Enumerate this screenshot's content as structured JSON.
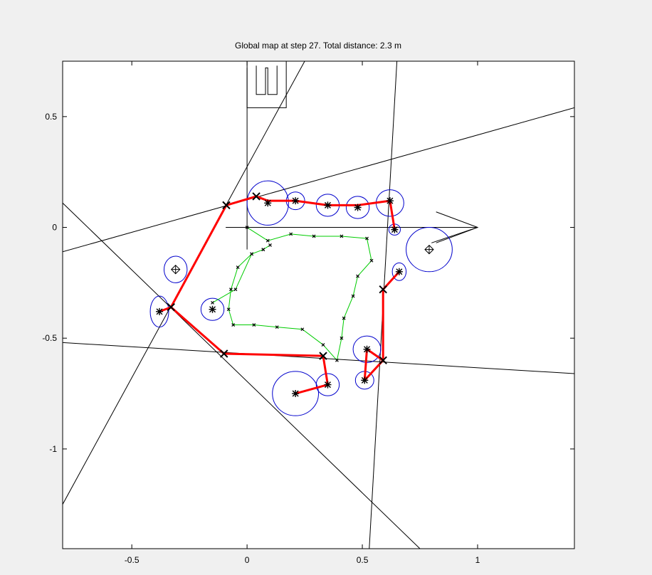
{
  "chart_data": {
    "type": "scatter",
    "title": "Global map at step 27. Total distance: 2.3 m",
    "xlabel": "",
    "ylabel": "",
    "xlim": [
      -0.8,
      1.42
    ],
    "ylim": [
      -1.45,
      0.75
    ],
    "grid": false,
    "legend": "none",
    "x_ticks": [
      -0.5,
      0,
      0.5,
      1
    ],
    "x_tick_labels": [
      "-0.5",
      "0",
      "0.5",
      "1"
    ],
    "y_ticks": [
      0.5,
      0,
      -0.5,
      -1
    ],
    "y_tick_labels": [
      "0.5",
      "0",
      "-0.5",
      "-1"
    ],
    "colors": {
      "figure_bg": "#f0f0f0",
      "axes_bg": "#ffffff",
      "map_path": "#ff0000",
      "robot_trajectory": "#00cc00",
      "uncertainty_ellipse": "#0000cc",
      "lines": "#000000"
    },
    "series": [
      {
        "kind": "map_path",
        "points": [
          [
            0.64,
            -0.01
          ],
          [
            0.62,
            0.12
          ],
          [
            0.48,
            0.1
          ],
          [
            0.35,
            0.1
          ],
          [
            0.21,
            0.12
          ],
          [
            0.09,
            0.12
          ],
          [
            0.04,
            0.14
          ],
          [
            -0.09,
            0.1
          ],
          [
            -0.33,
            -0.36
          ],
          [
            -0.1,
            -0.57
          ],
          [
            0.33,
            -0.58
          ],
          [
            0.35,
            -0.71
          ],
          [
            0.21,
            -0.75
          ]
        ]
      },
      {
        "kind": "map_path",
        "points": [
          [
            0.66,
            -0.2
          ],
          [
            0.59,
            -0.28
          ],
          [
            0.59,
            -0.6
          ],
          [
            0.52,
            -0.55
          ],
          [
            0.59,
            -0.6
          ],
          [
            0.51,
            -0.69
          ],
          [
            0.52,
            -0.55
          ]
        ]
      },
      {
        "kind": "map_path",
        "points": [
          [
            -0.33,
            -0.36
          ],
          [
            -0.38,
            -0.38
          ]
        ]
      },
      {
        "kind": "robot_trajectory",
        "points": [
          [
            0.0,
            0.0
          ],
          [
            0.09,
            -0.06
          ],
          [
            0.19,
            -0.03
          ],
          [
            0.29,
            -0.04
          ],
          [
            0.41,
            -0.04
          ],
          [
            0.52,
            -0.05
          ],
          [
            0.54,
            -0.15
          ],
          [
            0.48,
            -0.22
          ],
          [
            0.46,
            -0.31
          ],
          [
            0.42,
            -0.41
          ],
          [
            0.41,
            -0.5
          ],
          [
            0.39,
            -0.6
          ],
          [
            0.33,
            -0.53
          ],
          [
            0.24,
            -0.46
          ],
          [
            0.13,
            -0.45
          ],
          [
            0.03,
            -0.44
          ],
          [
            -0.06,
            -0.44
          ],
          [
            -0.08,
            -0.37
          ],
          [
            -0.07,
            -0.28
          ],
          [
            -0.04,
            -0.18
          ],
          [
            0.02,
            -0.12
          ],
          [
            0.07,
            -0.1
          ],
          [
            0.1,
            -0.08
          ],
          [
            0.07,
            -0.1
          ],
          [
            0.02,
            -0.12
          ],
          [
            -0.05,
            -0.28
          ],
          [
            -0.15,
            -0.34
          ]
        ]
      }
    ],
    "landmarks_star": [
      [
        0.09,
        0.11
      ],
      [
        0.21,
        0.12
      ],
      [
        0.35,
        0.1
      ],
      [
        0.48,
        0.09
      ],
      [
        0.62,
        0.12
      ],
      [
        0.64,
        -0.01
      ],
      [
        0.66,
        -0.2
      ],
      [
        -0.38,
        -0.38
      ],
      [
        0.52,
        -0.55
      ],
      [
        0.51,
        -0.69
      ],
      [
        0.35,
        -0.71
      ],
      [
        0.21,
        -0.75
      ],
      [
        -0.15,
        -0.37
      ]
    ],
    "landmarks_diamond": [
      [
        -0.31,
        -0.19
      ],
      [
        0.79,
        -0.1
      ]
    ],
    "cross_markers": [
      [
        -0.09,
        0.1
      ],
      [
        0.04,
        0.14
      ],
      [
        -0.33,
        -0.36
      ],
      [
        -0.1,
        -0.57
      ],
      [
        0.33,
        -0.58
      ],
      [
        0.59,
        -0.28
      ],
      [
        0.59,
        -0.6
      ]
    ],
    "ellipses": [
      {
        "cx": 0.09,
        "cy": 0.11,
        "rx": 0.09,
        "ry": 0.1
      },
      {
        "cx": 0.21,
        "cy": 0.12,
        "rx": 0.04,
        "ry": 0.04
      },
      {
        "cx": 0.35,
        "cy": 0.1,
        "rx": 0.05,
        "ry": 0.05
      },
      {
        "cx": 0.48,
        "cy": 0.09,
        "rx": 0.05,
        "ry": 0.05
      },
      {
        "cx": 0.62,
        "cy": 0.11,
        "rx": 0.06,
        "ry": 0.06
      },
      {
        "cx": 0.64,
        "cy": -0.01,
        "rx": 0.025,
        "ry": 0.025
      },
      {
        "cx": 0.66,
        "cy": -0.2,
        "rx": 0.03,
        "ry": 0.04
      },
      {
        "cx": 0.79,
        "cy": -0.1,
        "rx": 0.1,
        "ry": 0.1
      },
      {
        "cx": -0.31,
        "cy": -0.19,
        "rx": 0.05,
        "ry": 0.06
      },
      {
        "cx": -0.38,
        "cy": -0.38,
        "rx": 0.04,
        "ry": 0.07
      },
      {
        "cx": -0.15,
        "cy": -0.37,
        "rx": 0.05,
        "ry": 0.05
      },
      {
        "cx": 0.52,
        "cy": -0.55,
        "rx": 0.06,
        "ry": 0.06
      },
      {
        "cx": 0.51,
        "cy": -0.69,
        "rx": 0.04,
        "ry": 0.04
      },
      {
        "cx": 0.35,
        "cy": -0.71,
        "rx": 0.05,
        "ry": 0.05
      },
      {
        "cx": 0.21,
        "cy": -0.75,
        "rx": 0.1,
        "ry": 0.1
      }
    ],
    "lines": [
      [
        -0.8,
        -0.11,
        1.42,
        0.54
      ],
      [
        -0.8,
        -0.52,
        1.42,
        -0.66
      ],
      [
        -0.8,
        0.11,
        0.75,
        -1.45
      ],
      [
        -0.8,
        -1.25,
        0.25,
        0.75
      ],
      [
        0.53,
        -1.45,
        0.65,
        0.75
      ]
    ],
    "robot_frame": {
      "x_axis": [
        0,
        0,
        1.0,
        0
      ],
      "y_axis": [
        0,
        0,
        0,
        0.72
      ],
      "arrow_head": [
        [
          0.82,
          0.07
        ],
        [
          1.0,
          0
        ],
        [
          0.82,
          -0.07
        ]
      ],
      "arm_lines": [
        [
          -0.1,
          -0.1,
          0.0,
          0.0
        ]
      ]
    },
    "gripper_box": {
      "x0": 0.0,
      "y0": 0.54,
      "x1": 0.17,
      "y1": 0.75,
      "fork": [
        [
          0.04,
          0.73
        ],
        [
          0.04,
          0.6
        ],
        [
          0.08,
          0.6
        ],
        [
          0.08,
          0.72
        ],
        [
          0.09,
          0.72
        ],
        [
          0.09,
          0.6
        ],
        [
          0.13,
          0.6
        ],
        [
          0.13,
          0.73
        ]
      ]
    }
  }
}
